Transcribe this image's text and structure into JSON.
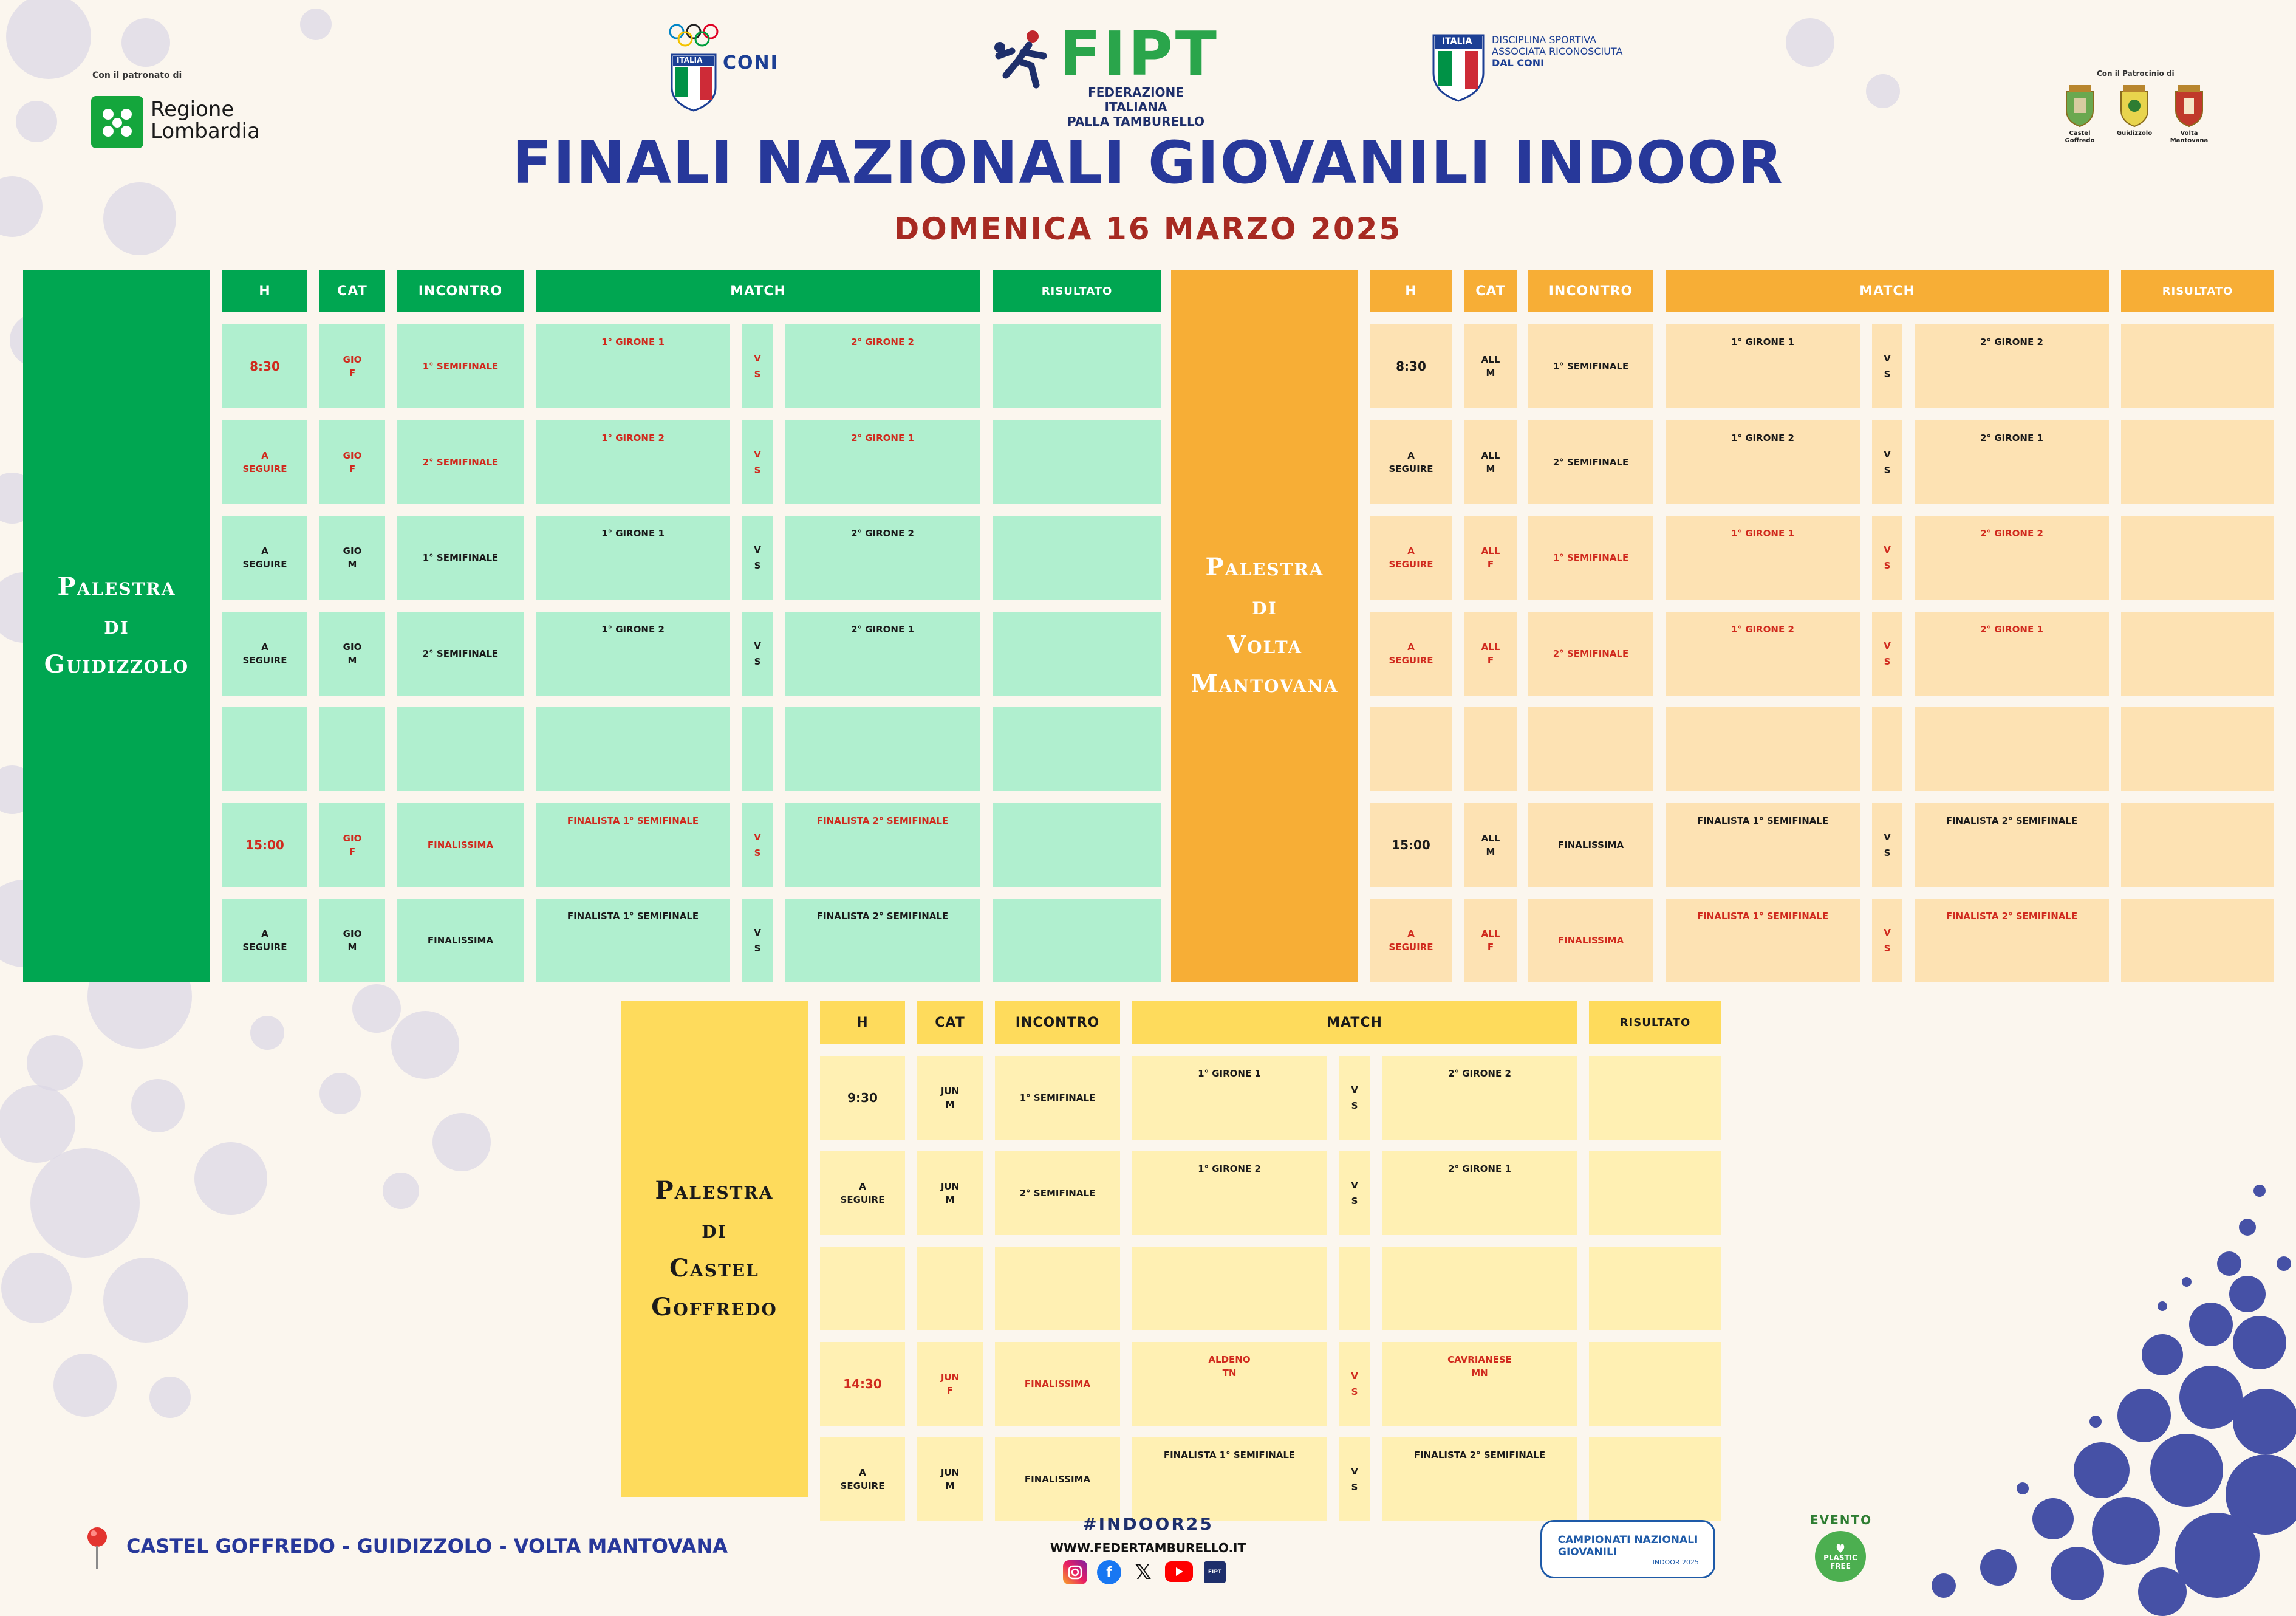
{
  "header": {
    "patronato_left": "Con il patronato di",
    "regione_line1": "Regione",
    "regione_line2": "Lombardia",
    "coni_text": "CONI",
    "italia_label": "ITALIA",
    "fipt_logo": "FIPT",
    "fipt_line1": "FEDERAZIONE ITALIANA",
    "fipt_line2": "PALLA TAMBURELLO",
    "disciplina_line1": "DISCIPLINA SPORTIVA",
    "disciplina_line2": "ASSOCIATA RICONOSCIUTA",
    "disciplina_line3": "DAL CONI",
    "patrocinio_right": "Con il Patrocinio di",
    "comuni": [
      "Castel Goffredo",
      "Guidizzolo",
      "Volta Mantovana"
    ],
    "title": "FINALI NAZIONALI GIOVANILI INDOOR",
    "subtitle": "DOMENICA 16 MARZO 2025"
  },
  "colors": {
    "green": "#00a651",
    "green_light": "#b0efcf",
    "orange": "#f7ae36",
    "orange_light": "#fde2b3",
    "yellow": "#fedb5c",
    "yellow_light": "#fff0b3",
    "title_blue": "#27389a",
    "date_red": "#a72a22",
    "accent_red": "#d02a1e"
  },
  "columns": {
    "h": "H",
    "cat": "CAT",
    "incontro": "INCONTRO",
    "match": "MATCH",
    "risultato": "RISULTATO"
  },
  "guidizzolo": {
    "venue": "Palestra\ndi\nGuidizzolo",
    "rows": [
      {
        "h": "8:30",
        "cat": "GIO\nF",
        "incontro": "1° SEMIFINALE",
        "a": "1° GIRONE 1",
        "vs": "V\nS",
        "b": "2° GIRONE 2",
        "red": true
      },
      {
        "h": "A\nSEGUIRE",
        "cat": "GIO\nF",
        "incontro": "2° SEMIFINALE",
        "a": "1° GIRONE 2",
        "vs": "V\nS",
        "b": "2° GIRONE 1",
        "red": true
      },
      {
        "h": "A\nSEGUIRE",
        "cat": "GIO\nM",
        "incontro": "1° SEMIFINALE",
        "a": "1° GIRONE 1",
        "vs": "V\nS",
        "b": "2° GIRONE 2",
        "red": false
      },
      {
        "h": "A\nSEGUIRE",
        "cat": "GIO\nM",
        "incontro": "2° SEMIFINALE",
        "a": "1° GIRONE 2",
        "vs": "V\nS",
        "b": "2° GIRONE 1",
        "red": false
      },
      {
        "h": "",
        "cat": "",
        "incontro": "",
        "a": "",
        "vs": "",
        "b": "",
        "red": false
      },
      {
        "h": "15:00",
        "cat": "GIO\nF",
        "incontro": "FINALISSIMA",
        "a": "FINALISTA 1° SEMIFINALE",
        "vs": "V\nS",
        "b": "FINALISTA 2° SEMIFINALE",
        "red": true
      },
      {
        "h": "A\nSEGUIRE",
        "cat": "GIO\nM",
        "incontro": "FINALISSIMA",
        "a": "FINALISTA 1° SEMIFINALE",
        "vs": "V\nS",
        "b": "FINALISTA 2° SEMIFINALE",
        "red": false
      }
    ]
  },
  "volta": {
    "venue": "Palestra\ndi\nVolta\nMantovana",
    "rows": [
      {
        "h": "8:30",
        "cat": "ALL\nM",
        "incontro": "1° SEMIFINALE",
        "a": "1° GIRONE 1",
        "vs": "V\nS",
        "b": "2° GIRONE 2",
        "red": false
      },
      {
        "h": "A\nSEGUIRE",
        "cat": "ALL\nM",
        "incontro": "2° SEMIFINALE",
        "a": "1° GIRONE 2",
        "vs": "V\nS",
        "b": "2° GIRONE 1",
        "red": false
      },
      {
        "h": "A\nSEGUIRE",
        "cat": "ALL\nF",
        "incontro": "1° SEMIFINALE",
        "a": "1° GIRONE 1",
        "vs": "V\nS",
        "b": "2° GIRONE 2",
        "red": true
      },
      {
        "h": "A\nSEGUIRE",
        "cat": "ALL\nF",
        "incontro": "2° SEMIFINALE",
        "a": "1° GIRONE 2",
        "vs": "V\nS",
        "b": "2° GIRONE 1",
        "red": true
      },
      {
        "h": "",
        "cat": "",
        "incontro": "",
        "a": "",
        "vs": "",
        "b": "",
        "red": false
      },
      {
        "h": "15:00",
        "cat": "ALL\nM",
        "incontro": "FINALISSIMA",
        "a": "FINALISTA 1° SEMIFINALE",
        "vs": "V\nS",
        "b": "FINALISTA 2° SEMIFINALE",
        "red": false
      },
      {
        "h": "A\nSEGUIRE",
        "cat": "ALL\nF",
        "incontro": "FINALISSIMA",
        "a": "FINALISTA 1° SEMIFINALE",
        "vs": "V\nS",
        "b": "FINALISTA 2° SEMIFINALE",
        "red": true
      }
    ]
  },
  "castel": {
    "venue": "Palestra\ndi\nCastel\nGoffredo",
    "rows": [
      {
        "h": "9:30",
        "cat": "JUN\nM",
        "incontro": "1° SEMIFINALE",
        "a": "1° GIRONE 1",
        "vs": "V\nS",
        "b": "2° GIRONE 2",
        "red": false
      },
      {
        "h": "A\nSEGUIRE",
        "cat": "JUN\nM",
        "incontro": "2° SEMIFINALE",
        "a": "1° GIRONE 2",
        "vs": "V\nS",
        "b": "2° GIRONE 1",
        "red": false
      },
      {
        "h": "",
        "cat": "",
        "incontro": "",
        "a": "",
        "vs": "",
        "b": "",
        "red": false
      },
      {
        "h": "14:30",
        "cat": "JUN\nF",
        "incontro": "FINALISSIMA",
        "a": "ALDENO\nTN",
        "vs": "V\nS",
        "b": "CAVRIANESE\nMN",
        "red": true
      },
      {
        "h": "A\nSEGUIRE",
        "cat": "JUN\nM",
        "incontro": "FINALISSIMA",
        "a": "FINALISTA 1° SEMIFINALE",
        "vs": "V\nS",
        "b": "FINALISTA 2° SEMIFINALE",
        "red": false
      }
    ]
  },
  "footer": {
    "location": "CASTEL GOFFREDO - GUIDIZZOLO - VOLTA MANTOVANA",
    "hashtag": "#INDOOR25",
    "website": "WWW.FEDERTAMBURELLO.IT",
    "badge_line1": "CAMPIONATI NAZIONALI",
    "badge_line2": "GIOVANILI",
    "badge_line3": "INDOOR 2025",
    "evento": "EVENTO",
    "plastic_line1": "PLASTIC",
    "plastic_line2": "FREE"
  }
}
